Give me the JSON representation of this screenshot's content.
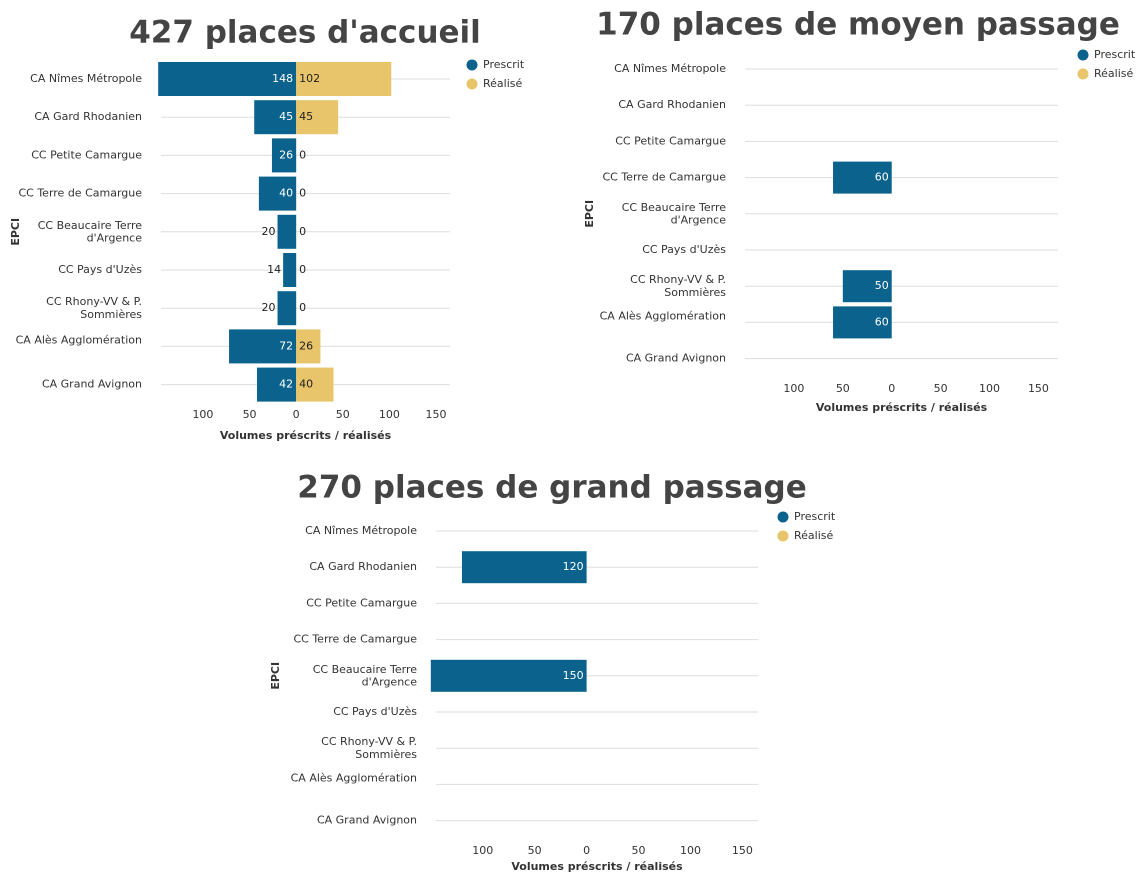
{
  "chart_data": [
    {
      "type": "diverging-bar",
      "title": "427 places d'accueil",
      "x_label": "Volumes préscrits / réalisés",
      "y_label": "EPCI",
      "categories": [
        "CA Nîmes Métropole",
        "CA Gard Rhodanien",
        "CC Petite Camargue",
        "CC Terre de Camargue",
        "CC Beaucaire Terre d'Argence",
        "CC Pays d'Uzès",
        "CC Rhony-VV & P. Sommières",
        "CA Alès Agglomération",
        "CA Grand Avignon"
      ],
      "series": [
        {
          "name": "Prescrit",
          "color": "#0b628d",
          "side": "left",
          "values": [
            148,
            45,
            26,
            40,
            20,
            14,
            20,
            72,
            42
          ]
        },
        {
          "name": "Réalisé",
          "color": "#e8c46a",
          "side": "right",
          "values": [
            102,
            45,
            0,
            0,
            0,
            0,
            0,
            26,
            40
          ]
        }
      ],
      "xlim": [
        -145,
        165
      ],
      "xticks": [
        {
          "value": -100,
          "label": "100"
        },
        {
          "value": -50,
          "label": "50"
        },
        0,
        50,
        100,
        150
      ],
      "legend": "top-right"
    },
    {
      "type": "diverging-bar",
      "title": "170 places de moyen passage",
      "x_label": "Volumes préscrits / réalisés",
      "y_label": "EPCI",
      "categories": [
        "CA Nîmes Métropole",
        "CA Gard Rhodanien",
        "CC Petite Camargue",
        "CC Terre de Camargue",
        "CC Beaucaire Terre d'Argence",
        "CC Pays d'Uzès",
        "CC Rhony-VV & P. Sommières",
        "CA Alès Agglomération",
        "CA Grand Avignon"
      ],
      "series": [
        {
          "name": "Prescrit",
          "color": "#0b628d",
          "side": "left",
          "values": [
            null,
            null,
            null,
            60,
            null,
            null,
            50,
            60,
            null
          ]
        },
        {
          "name": "Réalisé",
          "color": "#e8c46a",
          "side": "right",
          "values": [
            null,
            null,
            null,
            null,
            null,
            null,
            null,
            null,
            null
          ]
        }
      ],
      "xlim": [
        -150,
        170
      ],
      "xticks": [
        {
          "value": -100,
          "label": "100"
        },
        {
          "value": -50,
          "label": "50"
        },
        0,
        50,
        100,
        150
      ],
      "legend": "top-right"
    },
    {
      "type": "diverging-bar",
      "title": "270 places de grand passage",
      "x_label": "Volumes préscrits / réalisés",
      "y_label": "EPCI",
      "categories": [
        "CA Nîmes Métropole",
        "CA Gard Rhodanien",
        "CC Petite Camargue",
        "CC Terre de Camargue",
        "CC Beaucaire Terre d'Argence",
        "CC Pays d'Uzès",
        "CC Rhony-VV & P. Sommières",
        "CA Alès Agglomération",
        "CA Grand Avignon"
      ],
      "series": [
        {
          "name": "Prescrit",
          "color": "#0b628d",
          "side": "left",
          "values": [
            null,
            120,
            null,
            null,
            150,
            null,
            null,
            null,
            null
          ]
        },
        {
          "name": "Réalisé",
          "color": "#e8c46a",
          "side": "right",
          "values": [
            null,
            null,
            null,
            null,
            null,
            null,
            null,
            null,
            null
          ]
        }
      ],
      "xlim": [
        -145,
        165
      ],
      "xticks": [
        {
          "value": -100,
          "label": "100"
        },
        {
          "value": -50,
          "label": "50"
        },
        0,
        50,
        100,
        150
      ],
      "legend": "top-right"
    }
  ]
}
